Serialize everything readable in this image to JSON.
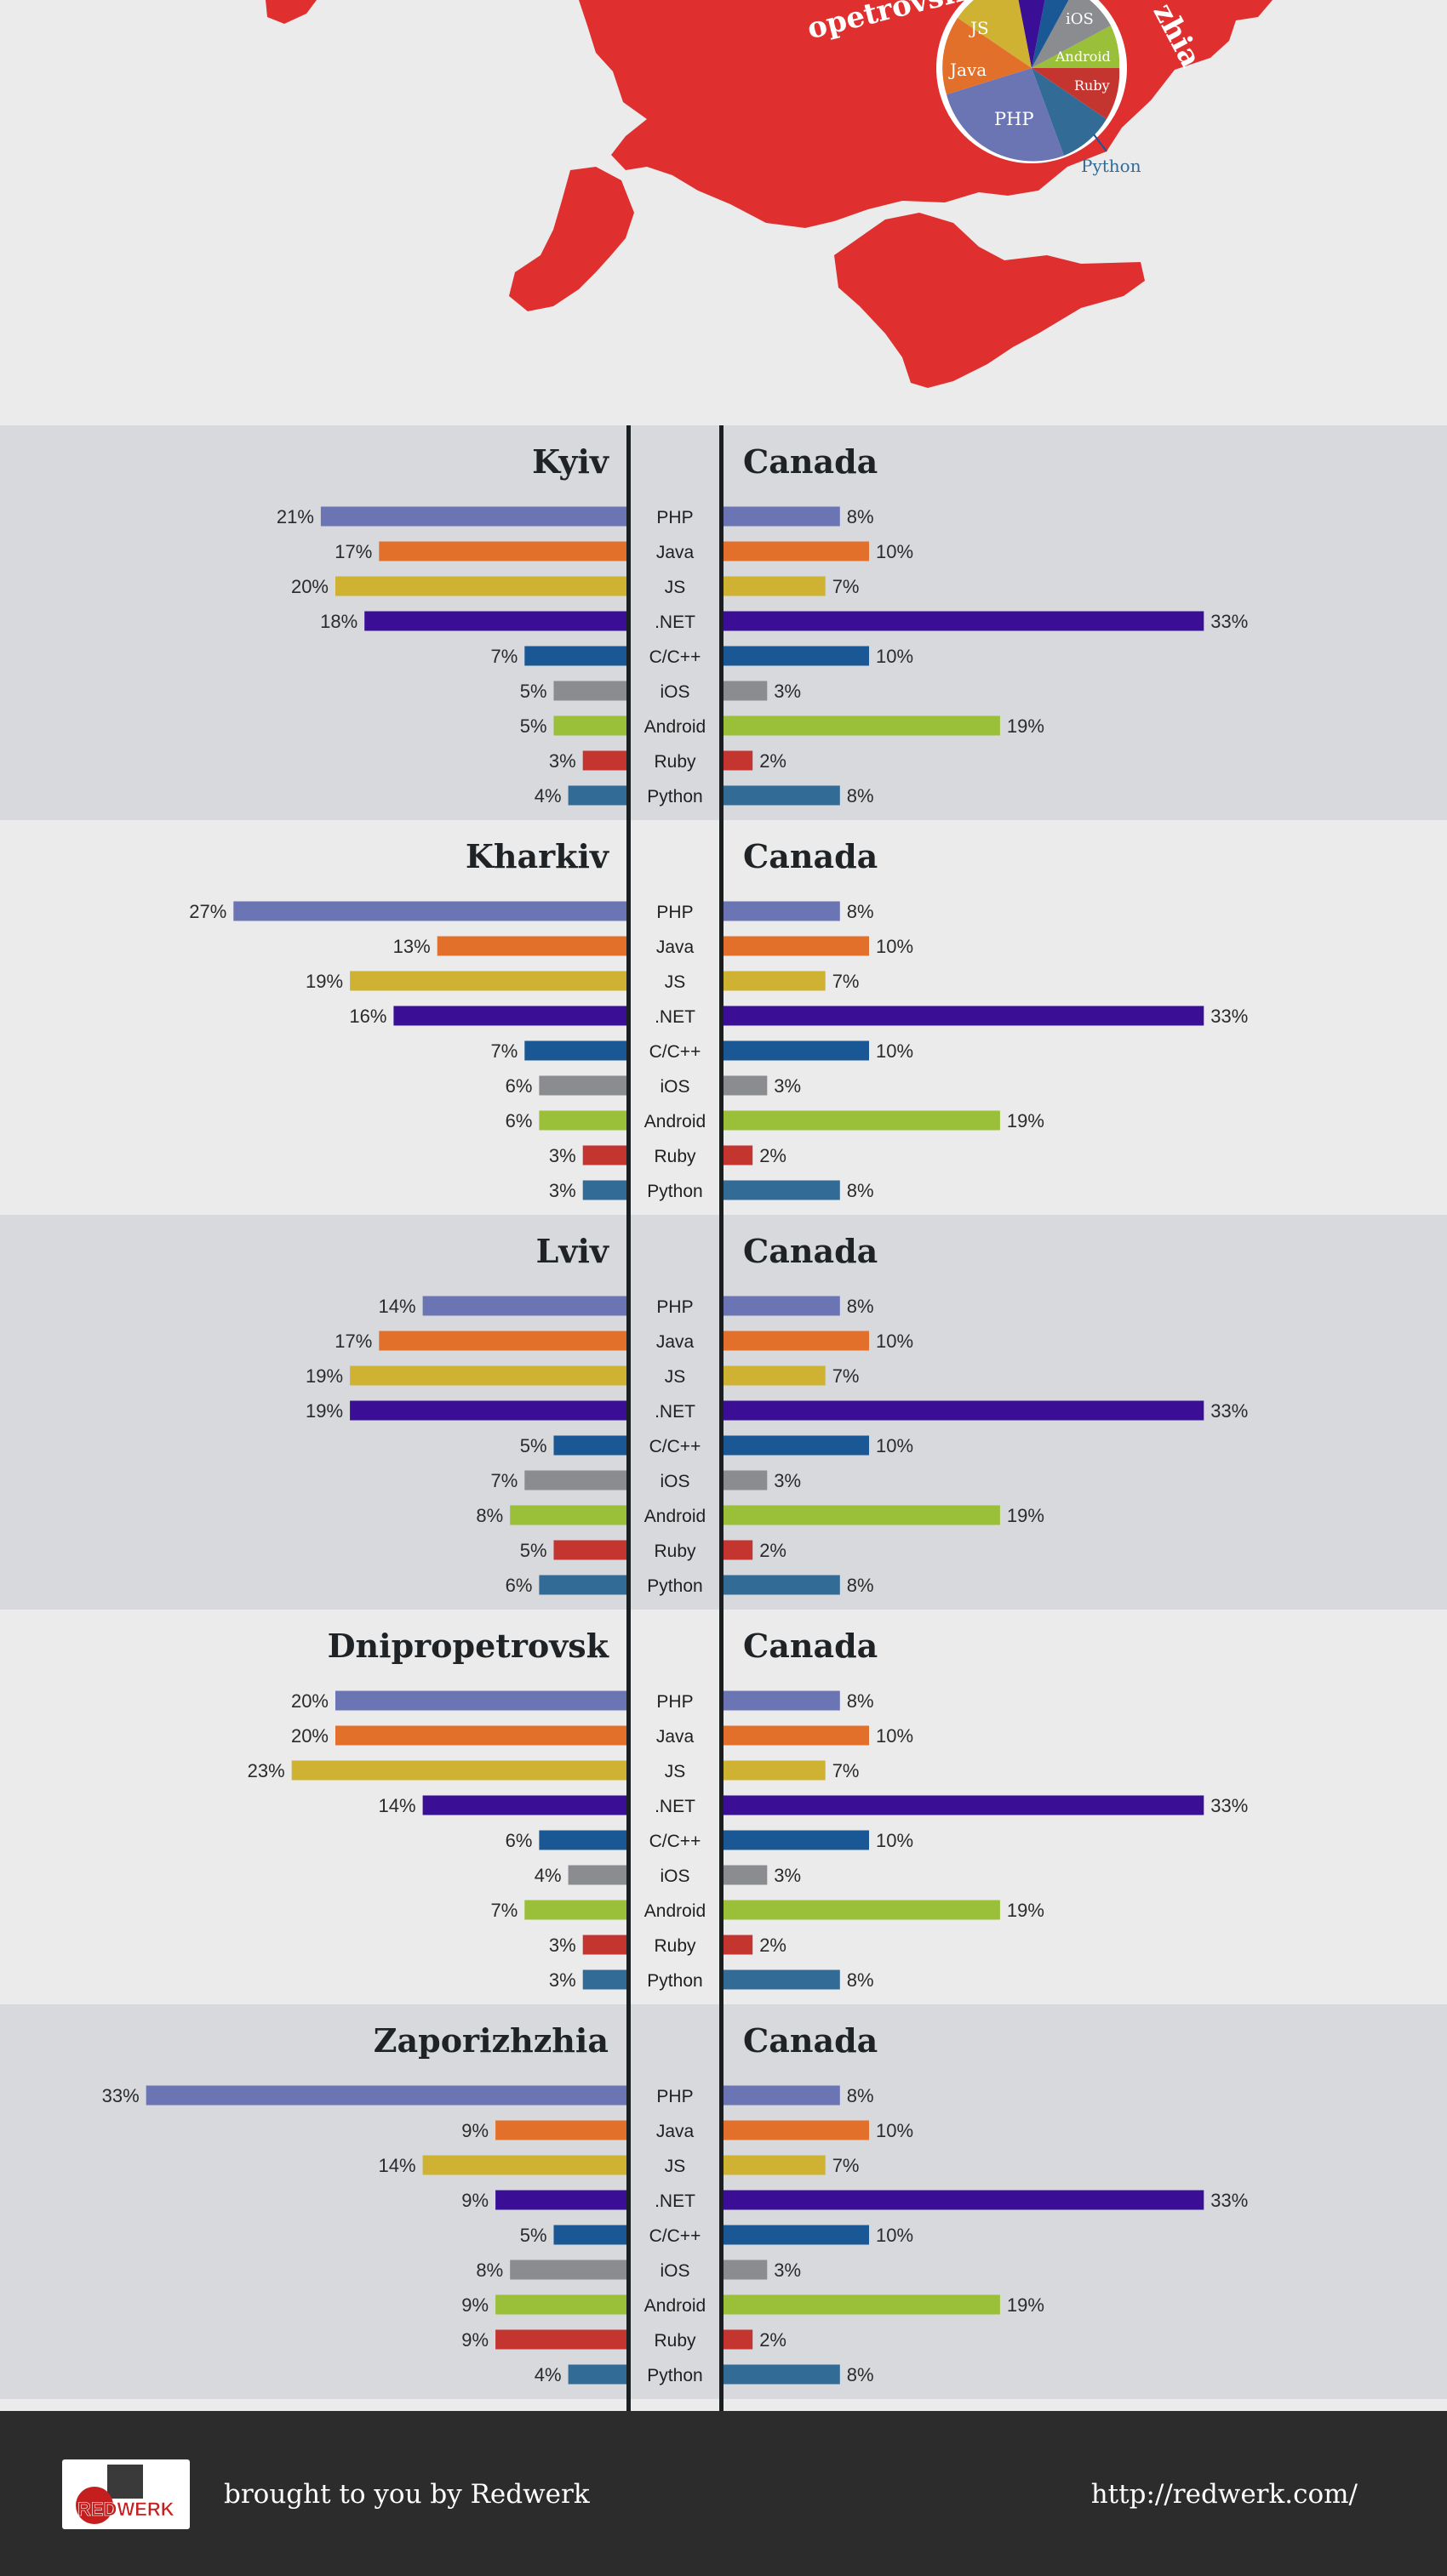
{
  "top_graphic": {
    "city_labels": [
      "opetrovsk",
      "zhia"
    ],
    "pie_labels": [
      "JS",
      "iOS",
      "Android",
      "Java",
      "Ruby",
      "PHP"
    ],
    "callout_label": "Python"
  },
  "colors": {
    "PHP": "#6c75b3",
    "Java": "#e3702a",
    "JS": "#cfb232",
    ".NET": "#3a0f96",
    "C/C++": "#1a5795",
    "iOS": "#8a8c8f",
    "Android": "#9abf38",
    "Ruby": "#c43530",
    "Python": "#336b97",
    "map_red": "#e02f2f"
  },
  "chart_data": [
    {
      "type": "bar",
      "title": "Kyiv vs Canada",
      "city": "Kyiv",
      "country": "Canada",
      "categories": [
        "PHP",
        "Java",
        "JS",
        ".NET",
        "C/C++",
        "iOS",
        "Android",
        "Ruby",
        "Python"
      ],
      "series": [
        {
          "name": "Kyiv",
          "values": [
            21,
            17,
            20,
            18,
            7,
            5,
            5,
            3,
            4
          ],
          "labels": [
            "21%",
            "17%",
            "20%",
            "18%",
            "7%",
            "5%",
            "5%",
            "3%",
            "4%"
          ]
        },
        {
          "name": "Canada",
          "values": [
            8,
            10,
            7,
            33,
            10,
            3,
            19,
            2,
            8
          ],
          "labels": [
            "8%",
            "10%",
            "7%",
            "33%",
            "10%",
            "3%",
            "19%",
            "2%",
            "8%"
          ]
        }
      ]
    },
    {
      "type": "bar",
      "title": "Kharkiv vs Canada",
      "city": "Kharkiv",
      "country": "Canada",
      "categories": [
        "PHP",
        "Java",
        "JS",
        ".NET",
        "C/C++",
        "iOS",
        "Android",
        "Ruby",
        "Python"
      ],
      "series": [
        {
          "name": "Kharkiv",
          "values": [
            27,
            13,
            19,
            16,
            7,
            6,
            6,
            3,
            3
          ],
          "labels": [
            "27%",
            "13%",
            "19%",
            "16%",
            "7%",
            "6%",
            "6%",
            "3%",
            "3%"
          ]
        },
        {
          "name": "Canada",
          "values": [
            8,
            10,
            7,
            33,
            10,
            3,
            19,
            2,
            8
          ],
          "labels": [
            "8%",
            "10%",
            "7%",
            "33%",
            "10%",
            "3%",
            "19%",
            "2%",
            "8%"
          ]
        }
      ]
    },
    {
      "type": "bar",
      "title": "Lviv vs Canada",
      "city": "Lviv",
      "country": "Canada",
      "categories": [
        "PHP",
        "Java",
        "JS",
        ".NET",
        "C/C++",
        "iOS",
        "Android",
        "Ruby",
        "Python"
      ],
      "series": [
        {
          "name": "Lviv",
          "values": [
            14,
            17,
            19,
            19,
            5,
            7,
            8,
            5,
            6
          ],
          "labels": [
            "14%",
            "17%",
            "19%",
            "19%",
            "5%",
            "7%",
            "8%",
            "5%",
            "6%"
          ]
        },
        {
          "name": "Canada",
          "values": [
            8,
            10,
            7,
            33,
            10,
            3,
            19,
            2,
            8
          ],
          "labels": [
            "8%",
            "10%",
            "7%",
            "33%",
            "10%",
            "3%",
            "19%",
            "2%",
            "8%"
          ]
        }
      ]
    },
    {
      "type": "bar",
      "title": "Dnipropetrovsk vs Canada",
      "city": "Dnipropetrovsk",
      "country": "Canada",
      "categories": [
        "PHP",
        "Java",
        "JS",
        ".NET",
        "C/C++",
        "iOS",
        "Android",
        "Ruby",
        "Python"
      ],
      "series": [
        {
          "name": "Dnipropetrovsk",
          "values": [
            20,
            20,
            23,
            14,
            6,
            4,
            7,
            3,
            3
          ],
          "labels": [
            "20%",
            "20%",
            "23%",
            "14%",
            "6%",
            "4%",
            "7%",
            "3%",
            "3%"
          ]
        },
        {
          "name": "Canada",
          "values": [
            8,
            10,
            7,
            33,
            10,
            3,
            19,
            2,
            8
          ],
          "labels": [
            "8%",
            "10%",
            "7%",
            "33%",
            "10%",
            "3%",
            "19%",
            "2%",
            "8%"
          ]
        }
      ]
    },
    {
      "type": "bar",
      "title": "Zaporizhzhia vs Canada",
      "city": "Zaporizhzhia",
      "country": "Canada",
      "categories": [
        "PHP",
        "Java",
        "JS",
        ".NET",
        "C/C++",
        "iOS",
        "Android",
        "Ruby",
        "Python"
      ],
      "series": [
        {
          "name": "Zaporizhzhia",
          "values": [
            33,
            9,
            14,
            9,
            5,
            8,
            9,
            9,
            4
          ],
          "labels": [
            "33%",
            "9%",
            "14%",
            "9%",
            "5%",
            "8%",
            "9%",
            "9%",
            "4%"
          ]
        },
        {
          "name": "Canada",
          "values": [
            8,
            10,
            7,
            33,
            10,
            3,
            19,
            2,
            8
          ],
          "labels": [
            "8%",
            "10%",
            "7%",
            "33%",
            "10%",
            "3%",
            "19%",
            "2%",
            "8%"
          ]
        }
      ]
    }
  ],
  "footer": {
    "logo_text": "REDWERK",
    "tagline": "brought to you by Redwerk",
    "url": "http://redwerk.com/"
  }
}
